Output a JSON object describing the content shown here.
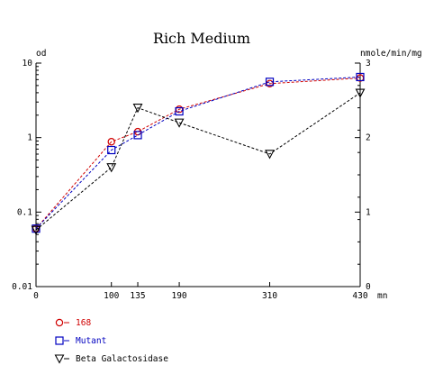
{
  "chart_data": {
    "type": "line",
    "title": "Rich Medium",
    "left_axis_label": "od",
    "right_axis_label": "nmole/min/mg",
    "x_unit_label": "mn",
    "left_axis_scale": "log",
    "left_ylim": [
      0.01,
      10
    ],
    "left_ticks": [
      "10",
      "1",
      "0.1",
      "0.01"
    ],
    "right_ylim": [
      0,
      3
    ],
    "right_ticks": [
      "3",
      "2",
      "1",
      "0"
    ],
    "xlim": [
      0,
      430
    ],
    "x_ticks": [
      "0",
      "100",
      "135",
      "190",
      "310",
      "430"
    ],
    "grid": false,
    "legend_position": "bottom-left",
    "series": [
      {
        "name": "168",
        "axis": "left",
        "color": "#d00000",
        "marker": "circle",
        "x": [
          0,
          100,
          135,
          190,
          310,
          430
        ],
        "y": [
          0.06,
          0.88,
          1.2,
          2.4,
          5.3,
          6.3
        ]
      },
      {
        "name": "Mutant",
        "axis": "left",
        "color": "#0000c0",
        "marker": "square",
        "x": [
          0,
          100,
          135,
          190,
          310,
          430
        ],
        "y": [
          0.06,
          0.68,
          1.08,
          2.25,
          5.6,
          6.5
        ]
      },
      {
        "name": "Beta Galactosidase",
        "axis": "right",
        "color": "#000000",
        "marker": "triangle-down",
        "x": [
          0,
          100,
          135,
          190,
          310,
          430
        ],
        "y": [
          0.76,
          1.6,
          2.4,
          2.2,
          1.78,
          2.6
        ]
      }
    ]
  }
}
